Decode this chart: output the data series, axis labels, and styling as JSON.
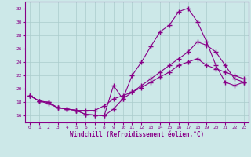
{
  "xlabel": "Windchill (Refroidissement éolien,°C)",
  "background_color": "#cce8e8",
  "line_color": "#880088",
  "grid_color": "#aacccc",
  "xlim": [
    -0.5,
    23.5
  ],
  "ylim": [
    15.0,
    33.0
  ],
  "yticks": [
    16,
    18,
    20,
    22,
    24,
    26,
    28,
    30,
    32
  ],
  "xticks": [
    0,
    1,
    2,
    3,
    4,
    5,
    6,
    7,
    8,
    9,
    10,
    11,
    12,
    13,
    14,
    15,
    16,
    17,
    18,
    19,
    20,
    21,
    22,
    23
  ],
  "series1_x": [
    0,
    1,
    2,
    3,
    4,
    5,
    6,
    7,
    8,
    9,
    10,
    11,
    12,
    13,
    14,
    15,
    16,
    17,
    18,
    19,
    20,
    21,
    22,
    23
  ],
  "series1_y": [
    19.0,
    18.2,
    18.0,
    17.2,
    17.0,
    16.8,
    16.2,
    16.1,
    16.0,
    20.5,
    18.5,
    22.0,
    24.0,
    26.3,
    28.5,
    29.5,
    31.5,
    32.0,
    30.0,
    27.0,
    23.5,
    21.0,
    20.5,
    21.0
  ],
  "series2_x": [
    0,
    1,
    2,
    3,
    4,
    5,
    6,
    7,
    8,
    9,
    10,
    11,
    12,
    13,
    14,
    15,
    16,
    17,
    18,
    19,
    20,
    21,
    22,
    23
  ],
  "series2_y": [
    19.0,
    18.2,
    17.8,
    17.2,
    17.0,
    16.8,
    16.8,
    16.8,
    17.5,
    18.5,
    19.0,
    19.5,
    20.2,
    21.0,
    21.8,
    22.5,
    23.5,
    24.0,
    24.5,
    23.5,
    23.0,
    22.5,
    22.0,
    21.5
  ],
  "series3_x": [
    0,
    1,
    2,
    3,
    4,
    5,
    6,
    7,
    8,
    9,
    10,
    11,
    12,
    13,
    14,
    15,
    16,
    17,
    18,
    19,
    20,
    21,
    22,
    23
  ],
  "series3_y": [
    19.0,
    18.2,
    18.0,
    17.2,
    17.0,
    16.8,
    16.2,
    16.1,
    16.0,
    17.0,
    18.5,
    19.5,
    20.5,
    21.5,
    22.5,
    23.5,
    24.5,
    25.5,
    27.0,
    26.5,
    25.5,
    23.5,
    21.5,
    21.0
  ]
}
